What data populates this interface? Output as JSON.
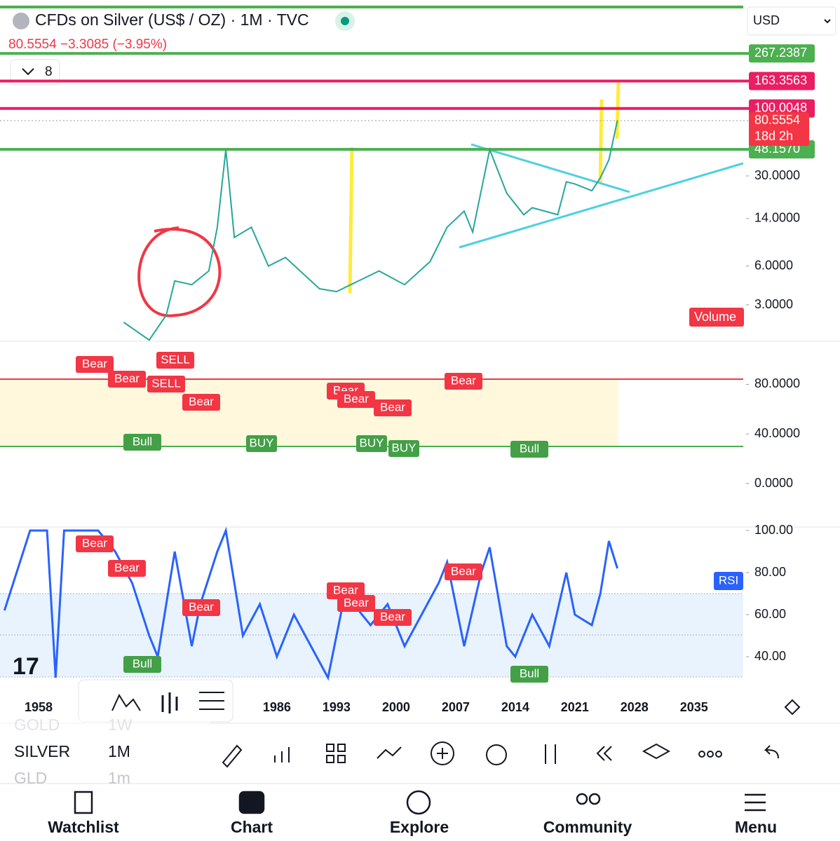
{
  "header": {
    "title": "CFDs on Silver (US$ / OZ) · 1M · TVC",
    "quote": "80.5554  −3.3085 (−3.95%)",
    "indicators_count": "8",
    "currency": "USD"
  },
  "price_chart": {
    "scale": "log",
    "levels": [
      {
        "value": 267.2387,
        "label": "267.2387",
        "color": "#4caf50"
      },
      {
        "value": 163.3563,
        "label": "163.3563",
        "color": "#e91e63"
      },
      {
        "value": 100.0048,
        "label": "100.0048",
        "color": "#e91e63"
      },
      {
        "value": 48.157,
        "label": "48.1570",
        "color": "#4caf50"
      }
    ],
    "last_price": {
      "value": 80.5554,
      "label": "80.5554",
      "countdown": "18d 2h"
    },
    "yticks": [
      {
        "value": 30,
        "label": "30.0000"
      },
      {
        "value": 14,
        "label": "14.0000"
      },
      {
        "value": 6,
        "label": "6.0000"
      },
      {
        "value": 3,
        "label": "3.0000"
      }
    ],
    "volume_label": "Volume",
    "series": {
      "x": [
        1968,
        1971,
        1973,
        1974,
        1976,
        1978,
        1979,
        1980,
        1981,
        1983,
        1985,
        1987,
        1991,
        1993,
        1998,
        2001,
        2004,
        2006,
        2008,
        2009,
        2011,
        2013,
        2015,
        2016,
        2019,
        2020,
        2021,
        2023,
        2024,
        2025,
        2026
      ],
      "values": [
        2.2,
        1.6,
        2.5,
        4.6,
        4.3,
        5.5,
        12,
        48,
        10,
        12,
        6,
        7,
        4,
        3.8,
        5.5,
        4.3,
        6.5,
        12,
        16,
        11,
        48,
        22,
        15,
        17,
        15,
        27,
        26,
        23,
        29,
        40,
        80.5554
      ]
    }
  },
  "x_axis": {
    "ticks": [
      1958,
      1986,
      1993,
      2000,
      2007,
      2014,
      2021,
      2028,
      2035
    ]
  },
  "oscillator": {
    "yticks": [
      {
        "value": 80,
        "label": "80.0000"
      },
      {
        "value": 40,
        "label": "40.0000"
      },
      {
        "value": 0,
        "label": "0.0000"
      }
    ],
    "signals": [
      "Bear",
      "Bear",
      "SELL",
      "SELL",
      "Bear",
      "Bull",
      "BUY",
      "Bear",
      "Bear",
      "Bear",
      "BUY",
      "BUY",
      "Bear",
      "Bull"
    ]
  },
  "rsi": {
    "label": "RSI",
    "yticks": [
      {
        "value": 100,
        "label": "100.00"
      },
      {
        "value": 80,
        "label": "80.00"
      },
      {
        "value": 60,
        "label": "60.00"
      },
      {
        "value": 40,
        "label": "40.00"
      }
    ],
    "x": [
      1954,
      1957,
      1959,
      1960,
      1961,
      1962,
      1965,
      1967,
      1969,
      1971,
      1972,
      1974,
      1976,
      1977,
      1979,
      1980,
      1982,
      1984,
      1986,
      1988,
      1990,
      1992,
      1994,
      1997,
      1999,
      2001,
      2003,
      2005,
      2006,
      2008,
      2010,
      2011,
      2013,
      2014,
      2016,
      2018,
      2020,
      2021,
      2023,
      2024,
      2025,
      2026
    ],
    "values": [
      62,
      100,
      100,
      30,
      100,
      100,
      100,
      90,
      75,
      50,
      40,
      90,
      45,
      65,
      90,
      100,
      50,
      65,
      40,
      60,
      45,
      30,
      70,
      55,
      65,
      45,
      60,
      75,
      85,
      45,
      80,
      92,
      45,
      40,
      60,
      45,
      80,
      60,
      55,
      70,
      95,
      82
    ],
    "signals": [
      "Bear",
      "Bear",
      "Bear",
      "Bull",
      "Bear",
      "Bear",
      "Bear",
      "Bear",
      "Bull"
    ]
  },
  "symbols": [
    {
      "symbol": "GOLD",
      "interval": "1W"
    },
    {
      "symbol": "SILVER",
      "interval": "1M"
    },
    {
      "symbol": "GLD",
      "interval": "1m"
    }
  ],
  "nav": [
    "Watchlist",
    "Chart",
    "Explore",
    "Community",
    "Menu"
  ]
}
